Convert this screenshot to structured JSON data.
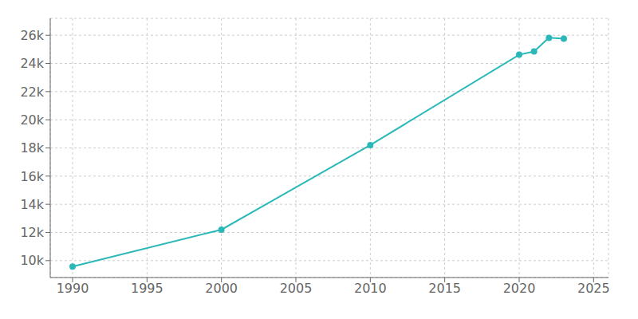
{
  "chart_data": {
    "type": "line",
    "x": [
      1990,
      2000,
      2010,
      2020,
      2021,
      2022,
      2023
    ],
    "values": [
      9575,
      12200,
      18200,
      24619,
      24850,
      25820,
      25760
    ],
    "color": "#2ab8b8",
    "marker": "circle",
    "xlim": [
      1988.5,
      2026
    ],
    "ylim": [
      8800,
      27200
    ],
    "xticks": [
      1990,
      1995,
      2000,
      2005,
      2010,
      2015,
      2020,
      2025
    ],
    "yticks": [
      {
        "value": 10000,
        "label": "10k"
      },
      {
        "value": 12000,
        "label": "12k"
      },
      {
        "value": 14000,
        "label": "14k"
      },
      {
        "value": 16000,
        "label": "16k"
      },
      {
        "value": 18000,
        "label": "18k"
      },
      {
        "value": 20000,
        "label": "20k"
      },
      {
        "value": 22000,
        "label": "22k"
      },
      {
        "value": 24000,
        "label": "24k"
      },
      {
        "value": 26000,
        "label": "26k"
      }
    ],
    "grid": true
  }
}
